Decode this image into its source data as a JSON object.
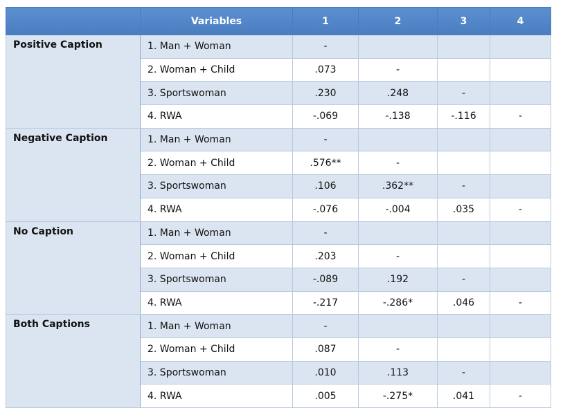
{
  "table": {
    "header": [
      "Variables",
      "1",
      "2",
      "3",
      "4"
    ],
    "groups": [
      {
        "label": "Positive Caption",
        "rows": [
          [
            "1. Man + Woman",
            "-"
          ],
          [
            "2. Woman + Child",
            ".073",
            "-"
          ],
          [
            "3. Sportswoman",
            ".230",
            ".248",
            "-"
          ],
          [
            "4. RWA",
            "-.069",
            "-.138",
            "-.116",
            "-"
          ]
        ]
      },
      {
        "label": "Negative Caption",
        "rows": [
          [
            "1. Man + Woman",
            "-"
          ],
          [
            "2. Woman + Child",
            ".576**",
            "-"
          ],
          [
            "3. Sportswoman",
            ".106",
            ".362**",
            "-"
          ],
          [
            "4. RWA",
            "-.076",
            "-.004",
            ".035",
            "-"
          ]
        ]
      },
      {
        "label": "No Caption",
        "rows": [
          [
            "1. Man + Woman",
            "-"
          ],
          [
            "2. Woman + Child",
            ".203",
            "-"
          ],
          [
            "3. Sportswoman",
            "-.089",
            ".192",
            "-"
          ],
          [
            "4. RWA",
            "-.217",
            "-.286*",
            ".046",
            "-"
          ]
        ]
      },
      {
        "label": "Both Captions",
        "rows": [
          [
            "1. Man + Woman",
            "-"
          ],
          [
            "2. Woman + Child",
            ".087",
            "-"
          ],
          [
            "3. Sportswoman",
            ".010",
            ".113",
            "-"
          ],
          [
            "4. RWA",
            ".005",
            "-.275*",
            ".041",
            "-"
          ]
        ]
      }
    ]
  }
}
